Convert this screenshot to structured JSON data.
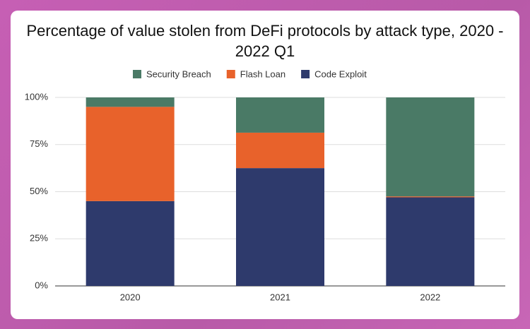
{
  "chart_data": {
    "type": "stacked_bar",
    "title": "Percentage of value stolen from DeFi protocols by attack type, 2020 - 2022 Q1",
    "categories": [
      "2020",
      "2021",
      "2022"
    ],
    "series": [
      {
        "name": "Code Exploit",
        "color": "#2e3a6c",
        "values": [
          45,
          62.5,
          47
        ]
      },
      {
        "name": "Flash Loan",
        "color": "#e8622b",
        "values": [
          50,
          18.8,
          0.5
        ]
      },
      {
        "name": "Security Breach",
        "color": "#4a7a66",
        "values": [
          5,
          18.7,
          52.5
        ]
      }
    ],
    "ylim": [
      0,
      100
    ],
    "yticks": [
      {
        "value": 0,
        "label": "0%"
      },
      {
        "value": 25,
        "label": "25%"
      },
      {
        "value": 50,
        "label": "50%"
      },
      {
        "value": 75,
        "label": "75%"
      },
      {
        "value": 100,
        "label": "100%"
      }
    ],
    "grid": true,
    "legend": "top"
  }
}
